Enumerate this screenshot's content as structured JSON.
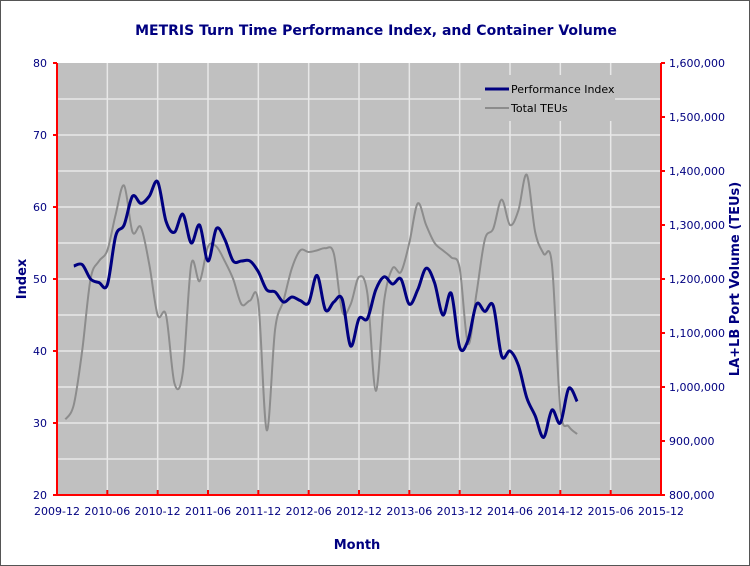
{
  "chart_data": {
    "type": "line",
    "title": "METRIS Turn Time Performance Index, and Container Volume",
    "xlabel": "Month",
    "ylabel": "Index",
    "y2label": "LA+LB Port Volume (TEUs)",
    "ylim": [
      20,
      80
    ],
    "y2lim": [
      800000,
      1600000
    ],
    "yticks": [
      "20",
      "30",
      "40",
      "50",
      "60",
      "70",
      "80"
    ],
    "y2ticks": [
      "800,000",
      "900,000",
      "1,000,000",
      "1,100,000",
      "1,200,000",
      "1,300,000",
      "1,400,000",
      "1,500,000",
      "1,600,000"
    ],
    "xticks": [
      "2009-12",
      "2010-06",
      "2010-12",
      "2011-06",
      "2011-12",
      "2012-06",
      "2012-12",
      "2013-06",
      "2013-12",
      "2014-06",
      "2014-12",
      "2015-06",
      "2015-12"
    ],
    "grid": true,
    "legend_position": "top-right",
    "x": [
      "2010-01",
      "2010-02",
      "2010-03",
      "2010-04",
      "2010-05",
      "2010-06",
      "2010-07",
      "2010-08",
      "2010-09",
      "2010-10",
      "2010-11",
      "2010-12",
      "2011-01",
      "2011-02",
      "2011-03",
      "2011-04",
      "2011-05",
      "2011-06",
      "2011-07",
      "2011-08",
      "2011-09",
      "2011-10",
      "2011-11",
      "2011-12",
      "2012-01",
      "2012-02",
      "2012-03",
      "2012-04",
      "2012-05",
      "2012-06",
      "2012-07",
      "2012-08",
      "2012-09",
      "2012-10",
      "2012-11",
      "2012-12",
      "2013-01",
      "2013-02",
      "2013-03",
      "2013-04",
      "2013-05",
      "2013-06",
      "2013-07",
      "2013-08",
      "2013-09",
      "2013-10",
      "2013-11",
      "2013-12",
      "2014-01",
      "2014-02",
      "2014-03",
      "2014-04",
      "2014-05",
      "2014-06",
      "2014-07",
      "2014-08",
      "2014-09",
      "2014-10",
      "2014-11",
      "2014-12",
      "2015-01",
      "2015-02"
    ],
    "series": [
      {
        "name": "Performance Index",
        "axis": "left",
        "color": "#000080",
        "values": [
          null,
          51.8,
          52,
          50,
          49.5,
          49.2,
          56,
          57.5,
          61.5,
          60.5,
          61.5,
          63.5,
          58,
          56.5,
          59,
          55,
          57.5,
          52.5,
          57,
          55.5,
          52.5,
          52.5,
          52.5,
          51,
          48.5,
          48.2,
          46.8,
          47.5,
          47,
          46.7,
          50.5,
          45.7,
          46.8,
          47.2,
          40.7,
          44.5,
          44.5,
          48.5,
          50.3,
          49.3,
          50,
          46.5,
          48.5,
          51.5,
          49.5,
          45,
          48,
          40.5,
          41.5,
          46.5,
          45.5,
          46.3,
          39.3,
          40,
          38,
          33.5,
          31,
          28,
          31.8,
          30,
          34.8,
          33
        ]
      },
      {
        "name": "Total TEUs",
        "axis": "right",
        "color": "#8c8c8c",
        "values": [
          940000,
          967000,
          1067000,
          1200000,
          1233000,
          1253000,
          1320000,
          1373000,
          1287000,
          1296000,
          1227000,
          1133000,
          1133000,
          1007000,
          1027000,
          1227000,
          1196000,
          1260000,
          1260000,
          1233000,
          1200000,
          1153000,
          1160000,
          1157000,
          920000,
          1107000,
          1160000,
          1220000,
          1253000,
          1250000,
          1253000,
          1257000,
          1247000,
          1140000,
          1153000,
          1204000,
          1173000,
          993000,
          1160000,
          1220000,
          1213000,
          1267000,
          1340000,
          1300000,
          1267000,
          1253000,
          1240000,
          1220000,
          1080000,
          1173000,
          1273000,
          1293000,
          1347000,
          1300000,
          1327000,
          1393000,
          1287000,
          1247000,
          1227000,
          960000,
          927000,
          913000
        ]
      }
    ],
    "colors": {
      "plot_bg": "#c0c0c0",
      "axis": "#ff0000",
      "text": "#000080"
    }
  }
}
